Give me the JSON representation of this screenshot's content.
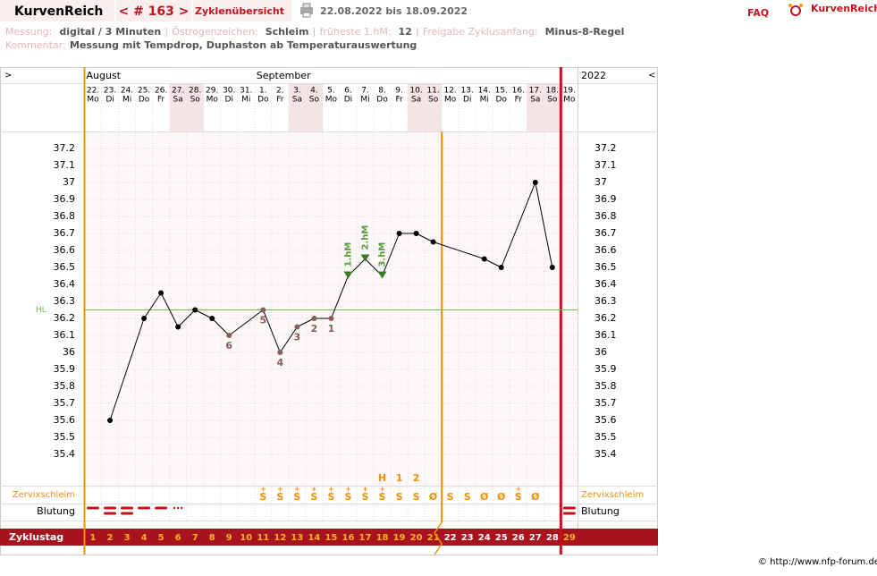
{
  "header": {
    "brand": "KurvenReich",
    "cycle_nav": "< # 163 >",
    "overview": "Zyklenübersicht",
    "date_range": "22.08.2022 bis 18.09.2022",
    "faq": "FAQ",
    "logo": "KurvenReich"
  },
  "info": {
    "fields": [
      {
        "label": "Messung:",
        "value": "digital / 3 Minuten"
      },
      {
        "label": "Östrogenzeichen:",
        "value": "Schleim"
      },
      {
        "label": "früheste 1.hM:",
        "value": "12"
      },
      {
        "label": "Freigabe Zyklusanfang:",
        "value": "Minus-8-Regel"
      }
    ],
    "comment_label": "Kommentar:",
    "comment": "Messung mit Tempdrop, Duphaston ab Temperaturauswertung"
  },
  "chart_data": {
    "type": "line",
    "nav_left": ">",
    "nav_right": "<",
    "year": "2022",
    "months": [
      "August",
      null,
      null,
      null,
      null,
      null,
      null,
      null,
      null,
      null,
      "September",
      null,
      null,
      null,
      null,
      null,
      null,
      null,
      null,
      null,
      null,
      null,
      null,
      null,
      null,
      null,
      null,
      null,
      null
    ],
    "dates": [
      "22.",
      "23.",
      "24.",
      "25.",
      "26.",
      "27.",
      "28.",
      "29.",
      "30.",
      "31.",
      "1.",
      "2.",
      "3.",
      "4.",
      "5.",
      "6.",
      "7.",
      "8.",
      "9.",
      "10.",
      "11.",
      "12.",
      "13.",
      "14.",
      "15.",
      "16.",
      "17.",
      "18.",
      "19."
    ],
    "weekdays": [
      "Mo",
      "Di",
      "Mi",
      "Do",
      "Fr",
      "Sa",
      "So",
      "Mo",
      "Di",
      "Mi",
      "Do",
      "Fr",
      "Sa",
      "So",
      "Mo",
      "Di",
      "Mi",
      "Do",
      "Fr",
      "Sa",
      "So",
      "Mo",
      "Di",
      "Mi",
      "Do",
      "Fr",
      "Sa",
      "So",
      "Mo"
    ],
    "categories": [
      1,
      2,
      3,
      4,
      5,
      6,
      7,
      8,
      9,
      10,
      11,
      12,
      13,
      14,
      15,
      16,
      17,
      18,
      19,
      20,
      21,
      22,
      23,
      24,
      25,
      26,
      27,
      28,
      29
    ],
    "values": [
      null,
      35.6,
      null,
      36.2,
      36.35,
      36.15,
      36.25,
      36.2,
      36.1,
      null,
      36.25,
      36.0,
      36.15,
      36.2,
      36.2,
      36.45,
      36.55,
      36.45,
      36.7,
      36.7,
      36.65,
      null,
      null,
      36.55,
      36.5,
      null,
      37.0,
      36.5,
      null
    ],
    "color": "#000000",
    "point_labels": [
      null,
      null,
      null,
      null,
      null,
      null,
      null,
      null,
      "6",
      null,
      "5",
      "4",
      "3",
      "2",
      "1",
      "1.hM",
      "2.hM",
      "3.hM",
      null,
      null,
      null,
      null,
      null,
      null,
      null,
      null,
      null,
      null,
      null
    ],
    "coverline": {
      "label": "HL",
      "value": 36.25,
      "color": "#7ab648"
    },
    "ylim": [
      35.2,
      37.3
    ],
    "yticks": [
      35.4,
      35.5,
      35.6,
      35.7,
      35.8,
      35.9,
      36,
      36.1,
      36.2,
      36.3,
      36.4,
      36.5,
      36.6,
      36.7,
      36.8,
      36.9,
      37,
      37.1,
      37.2
    ],
    "grid": true,
    "evaluation_after_day": 21,
    "cycle_end_after_day": 28,
    "mucus_label": "Zervixschleim",
    "mucus_top": [
      null,
      null,
      null,
      null,
      null,
      null,
      null,
      null,
      null,
      null,
      "+",
      "+",
      "+",
      "+",
      "+",
      "+",
      "+",
      "+",
      null,
      null,
      null,
      null,
      null,
      null,
      null,
      "+",
      null,
      null,
      null
    ],
    "mucus": [
      null,
      null,
      null,
      null,
      null,
      null,
      null,
      null,
      null,
      null,
      "S",
      "S",
      "S",
      "S",
      "S",
      "S",
      "S",
      "S",
      "S",
      "S",
      "Ø",
      "S",
      "S",
      "Ø",
      "Ø",
      "S",
      "Ø",
      null,
      null
    ],
    "peak": [
      null,
      null,
      null,
      null,
      null,
      null,
      null,
      null,
      null,
      null,
      null,
      null,
      null,
      null,
      null,
      null,
      null,
      "H",
      "1",
      "2",
      null,
      null,
      null,
      null,
      null,
      null,
      null,
      null,
      null
    ],
    "bleeding_label": "Blutung",
    "cycle_day_label": "Zyklustag"
  },
  "footer": "© http://www.nfp-forum.de"
}
